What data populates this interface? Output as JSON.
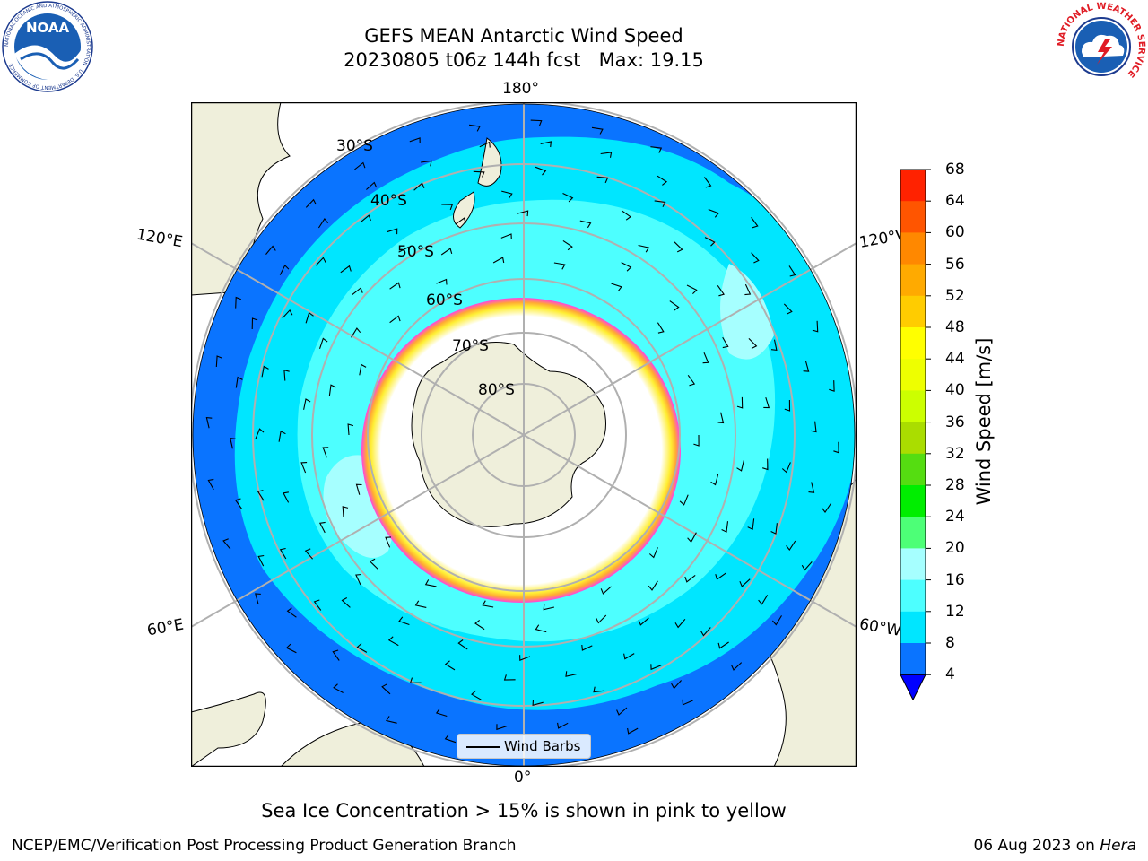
{
  "title": {
    "line1": "GEFS MEAN Antarctic Wind Speed",
    "line2": "20230805 t06z 144h fcst   Max: 19.15"
  },
  "map": {
    "projection": "south-polar-stereographic",
    "longitude_labels": {
      "top": "180°",
      "bottom": "0°",
      "left_upper": "120°E",
      "right_upper": "120°W",
      "left_lower": "60°E",
      "right_lower": "60°W"
    },
    "latitude_labels": [
      "30°S",
      "40°S",
      "50°S",
      "60°S",
      "70°S",
      "80°S"
    ],
    "colors": {
      "land": "#efefdb",
      "ocean_dark": "#0a74ff",
      "ocean_mid": "#00e6ff",
      "ocean_light": "#4dffff",
      "ocean_pale": "#a6ffff",
      "sea_ice_pink": "#ff44e0",
      "sea_ice_orange": "#ffaa33",
      "sea_ice_yellow": "#ffee33",
      "gridline": "#b0b0b0"
    },
    "legend": {
      "label": "Wind Barbs"
    }
  },
  "colorbar": {
    "label": "Wind Speed [m/s]",
    "ticks": [
      "68",
      "64",
      "60",
      "56",
      "52",
      "48",
      "44",
      "40",
      "36",
      "32",
      "28",
      "24",
      "20",
      "16",
      "12",
      "8",
      "4"
    ],
    "levels": [
      4,
      8,
      12,
      16,
      20,
      24,
      28,
      32,
      36,
      40,
      44,
      48,
      52,
      56,
      60,
      64,
      68
    ],
    "colors": [
      "#0a74ff",
      "#00e6ff",
      "#4dffff",
      "#a6ffff",
      "#4dff77",
      "#00ee00",
      "#55dd11",
      "#aadd00",
      "#ccff00",
      "#eeff00",
      "#ffff00",
      "#ffcc00",
      "#ffaa00",
      "#ff8800",
      "#ff5500",
      "#ff2200"
    ],
    "extend_color": "#0000ff"
  },
  "caption": "Sea Ice Concentration > 15% is shown in pink to yellow",
  "footer": {
    "left": "NCEP/EMC/Verification Post Processing Product Generation Branch",
    "date": "06 Aug 2023 on",
    "system": "Hera"
  },
  "logos": {
    "noaa": {
      "text": "NOAA",
      "ring_text": "NATIONAL OCEANIC AND ATMOSPHERIC ADMINISTRATION · U.S. DEPARTMENT OF COMMERCE"
    },
    "nws": {
      "ring_text": "NATIONAL WEATHER SERVICE"
    }
  }
}
